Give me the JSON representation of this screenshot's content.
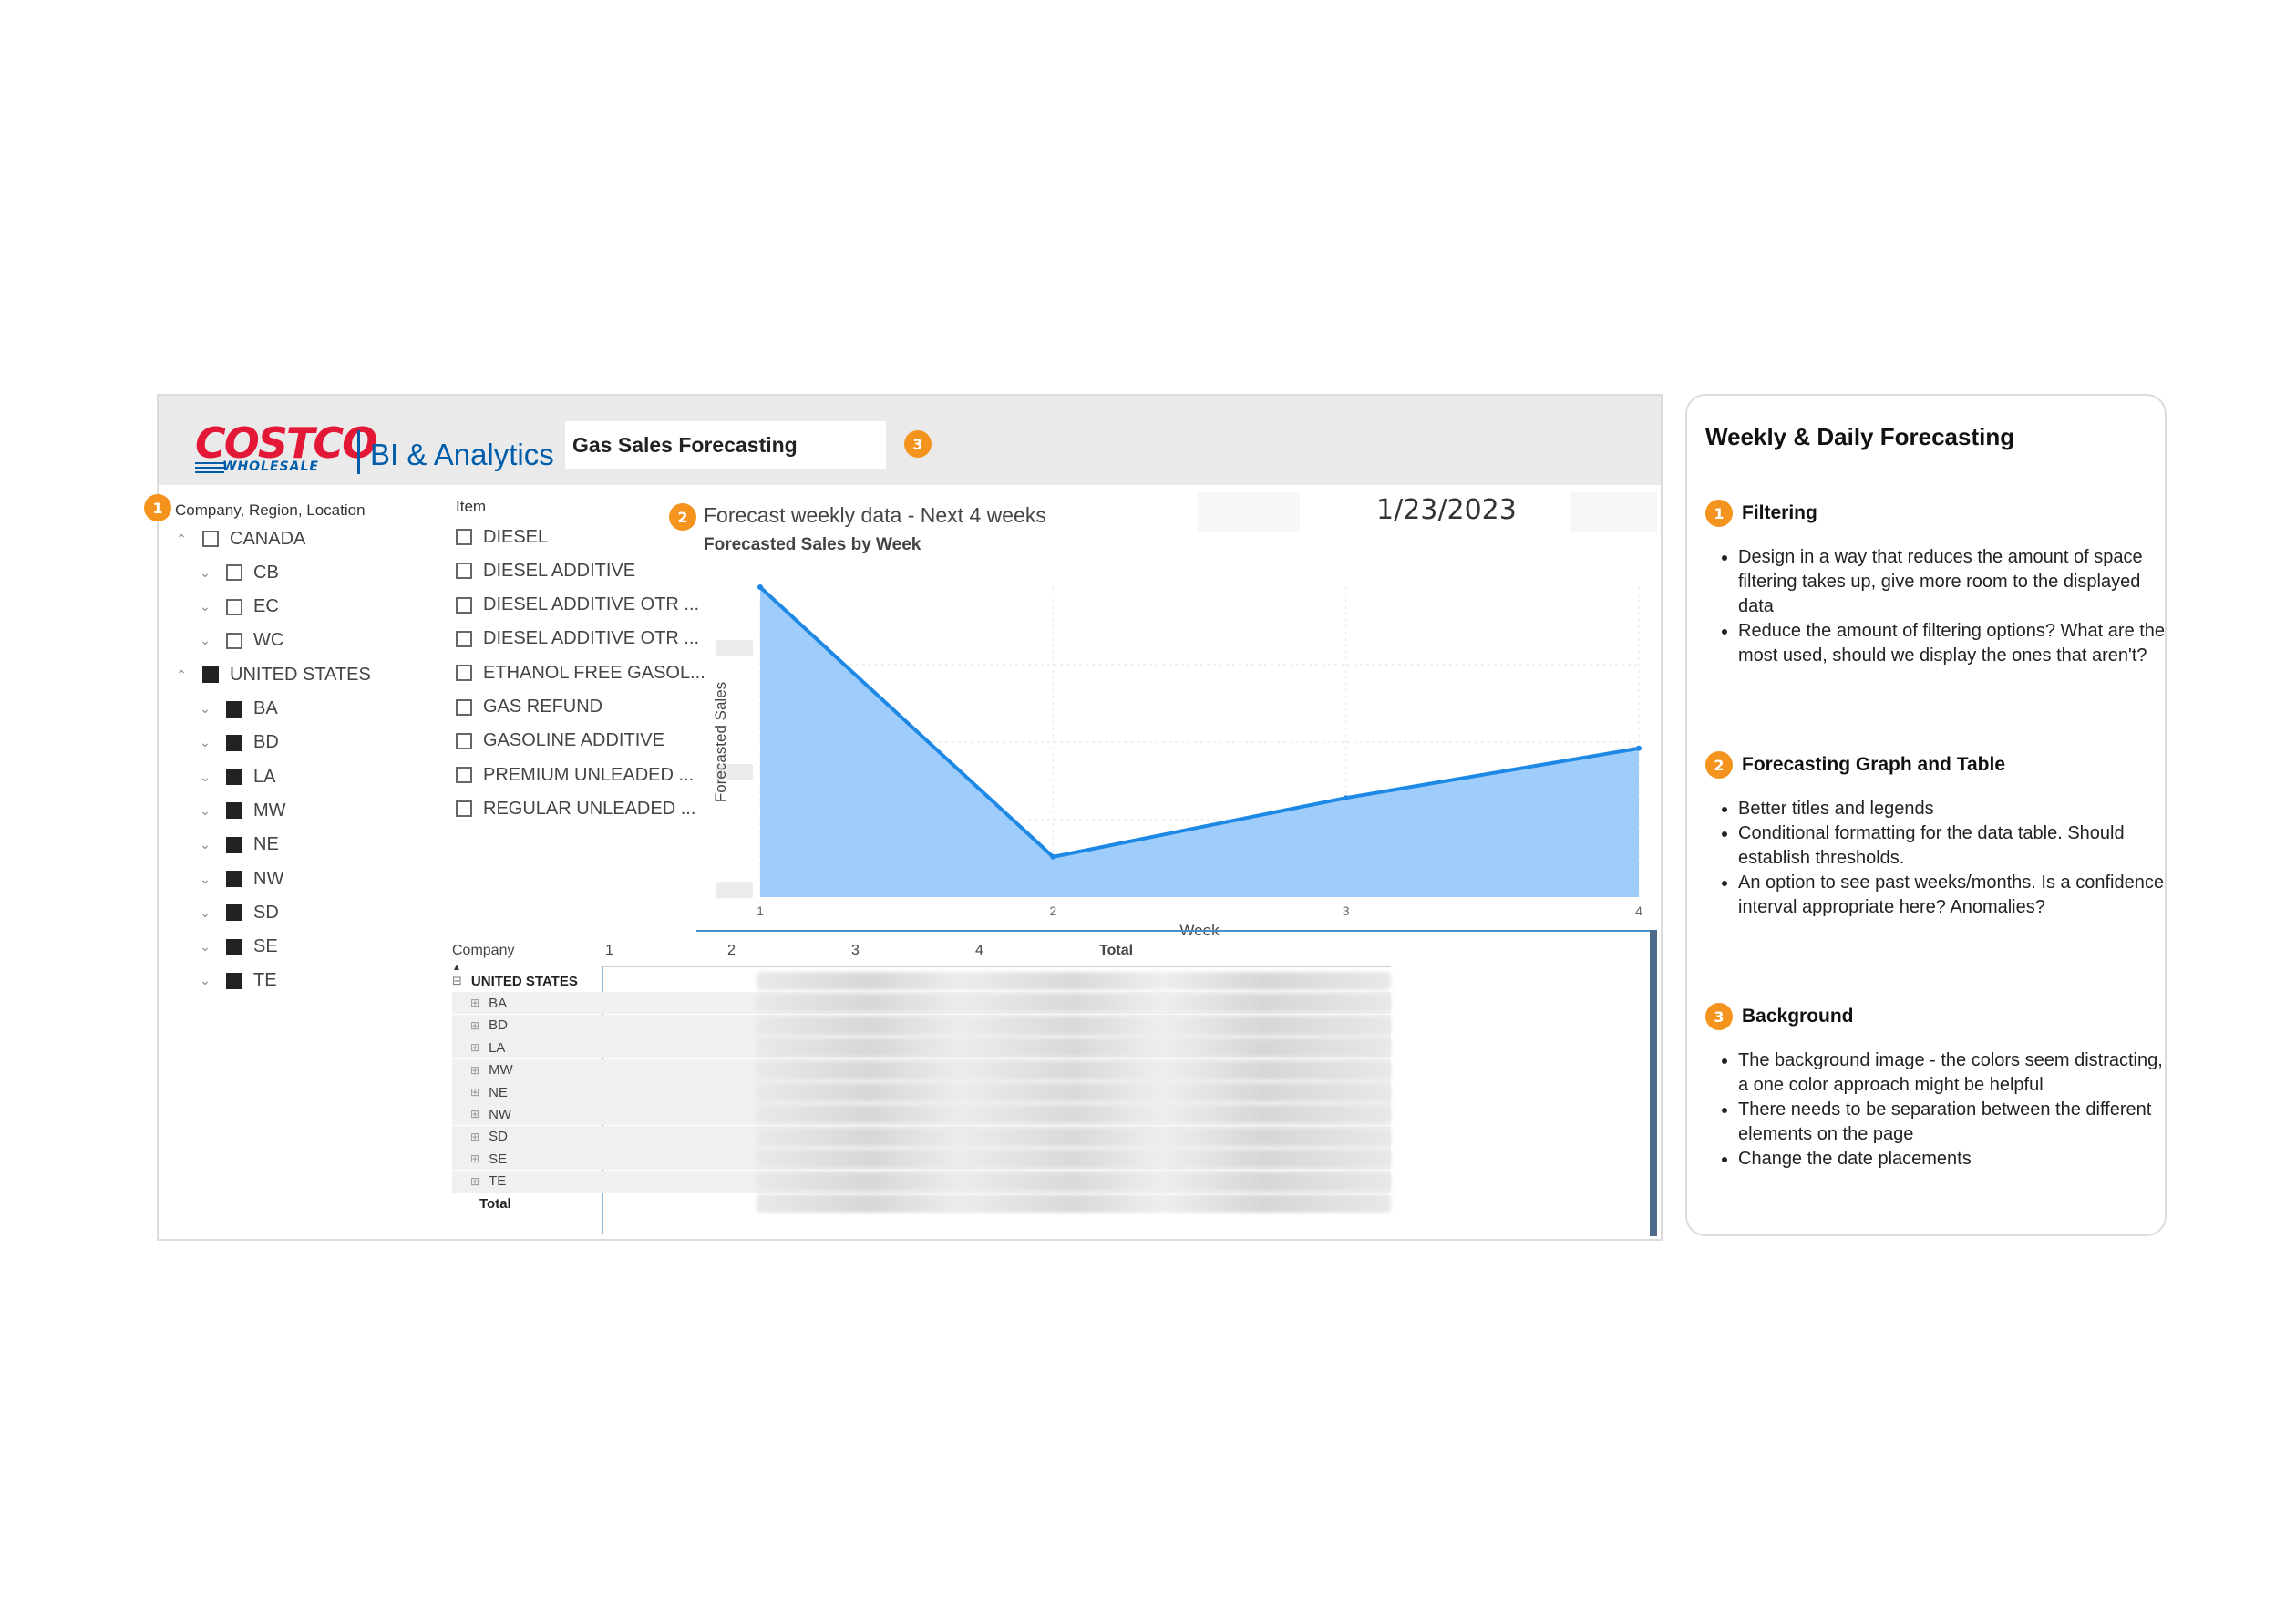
{
  "header": {
    "logo_brand": "COSTCO",
    "logo_sub": "WHOLESALE",
    "logo_product": "BI & Analytics",
    "report_title": "Gas Sales Forecasting",
    "date": "1/23/2023"
  },
  "annotations": {
    "one": "1",
    "two": "2",
    "three": "3"
  },
  "colors": {
    "accent": "#f5931f",
    "chart_line": "#1e88e5",
    "chart_fill": "#9ecdfb",
    "brand_red": "#e31837",
    "brand_blue": "#005daa"
  },
  "location_slicer": {
    "title": "Company, Region, Location",
    "nodes": [
      {
        "label": "CANADA",
        "checked": false
      },
      {
        "label": "CB",
        "checked": false
      },
      {
        "label": "EC",
        "checked": false
      },
      {
        "label": "WC",
        "checked": false
      },
      {
        "label": "UNITED STATES",
        "checked": true
      },
      {
        "label": "BA",
        "checked": true
      },
      {
        "label": "BD",
        "checked": true
      },
      {
        "label": "LA",
        "checked": true
      },
      {
        "label": "MW",
        "checked": true
      },
      {
        "label": "NE",
        "checked": true
      },
      {
        "label": "NW",
        "checked": true
      },
      {
        "label": "SD",
        "checked": true
      },
      {
        "label": "SE",
        "checked": true
      },
      {
        "label": "TE",
        "checked": true
      }
    ]
  },
  "item_slicer": {
    "title": "Item",
    "items": [
      "DIESEL",
      "DIESEL ADDITIVE",
      "DIESEL ADDITIVE OTR ...",
      "DIESEL ADDITIVE OTR ...",
      "ETHANOL FREE GASOL...",
      "GAS REFUND",
      "GASOLINE ADDITIVE",
      "PREMIUM UNLEADED ...",
      "REGULAR UNLEADED ..."
    ]
  },
  "forecast_visual": {
    "title": "Forecast weekly data - Next 4 weeks"
  },
  "chart_data": {
    "type": "area",
    "title": "Forecasted Sales by Week",
    "xlabel": "Week",
    "ylabel": "Forecasted Sales",
    "x": [
      1,
      2,
      3,
      4
    ],
    "values": [
      100,
      13,
      32,
      48
    ],
    "xlim": [
      1,
      4
    ],
    "ylim": [
      0,
      100
    ],
    "grid": true,
    "legend": "none"
  },
  "matrix": {
    "headers": [
      "Company",
      "1",
      "2",
      "3",
      "4",
      "Total"
    ],
    "group": "UNITED STATES",
    "rows": [
      "BA",
      "BD",
      "LA",
      "MW",
      "NE",
      "NW",
      "SD",
      "SE",
      "TE"
    ],
    "total_label": "Total"
  },
  "side_panel": {
    "title": "Weekly & Daily Forecasting",
    "sections": [
      {
        "title": "Filtering",
        "bullets": [
          "Design in a way that reduces the amount of space filtering takes up, give more room to the displayed data",
          "Reduce the amount of filtering options? What are the most used, should we display the ones that aren't?"
        ]
      },
      {
        "title": "Forecasting Graph and Table",
        "bullets": [
          "Better titles and legends",
          "Conditional formatting for the data table. Should establish thresholds.",
          "An option to see past weeks/months. Is a confidence interval appropriate here? Anomalies?"
        ]
      },
      {
        "title": "Background",
        "bullets": [
          "The background image - the colors seem distracting, a one color approach might be helpful",
          "There needs to be separation between the different elements on the page",
          "Change the date placements"
        ]
      }
    ]
  }
}
